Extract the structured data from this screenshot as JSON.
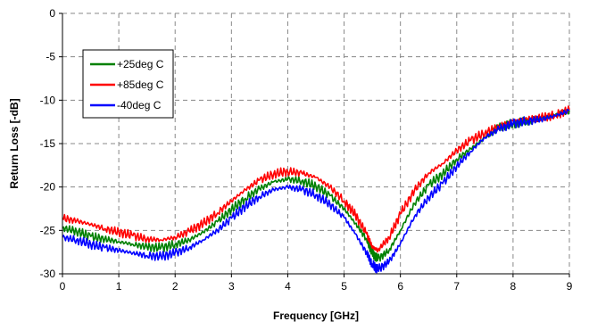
{
  "chart_data": {
    "type": "line",
    "title": "",
    "xlabel": "Frequency [GHz]",
    "ylabel": "Return Loss [-dB]",
    "xlim": [
      0,
      9
    ],
    "ylim": [
      -30,
      0
    ],
    "xticks": [
      0,
      1,
      2,
      3,
      4,
      5,
      6,
      7,
      8,
      9
    ],
    "yticks": [
      0,
      -5,
      -10,
      -15,
      -20,
      -25,
      -30
    ],
    "grid": true,
    "legend_position": "top-left",
    "series": [
      {
        "name": "+25deg C",
        "color": "#008000",
        "x": [
          0,
          0.25,
          0.5,
          0.75,
          1,
          1.25,
          1.5,
          1.75,
          2,
          2.25,
          2.5,
          2.75,
          3,
          3.25,
          3.5,
          3.75,
          4,
          4.25,
          4.5,
          4.75,
          5,
          5.2,
          5.4,
          5.5,
          5.6,
          5.8,
          6,
          6.25,
          6.5,
          6.75,
          7,
          7.25,
          7.5,
          7.75,
          8,
          8.25,
          8.5,
          8.75,
          9
        ],
        "y": [
          -24.7,
          -25.1,
          -25.7,
          -26.0,
          -26.3,
          -26.6,
          -26.9,
          -27.0,
          -26.6,
          -26.1,
          -25.2,
          -24.0,
          -22.6,
          -21.3,
          -20.2,
          -19.4,
          -19.1,
          -19.3,
          -19.9,
          -21.0,
          -22.5,
          -24.2,
          -26.0,
          -27.6,
          -28.3,
          -27.3,
          -25.0,
          -21.9,
          -19.8,
          -18.5,
          -16.8,
          -15.6,
          -14.3,
          -13.1,
          -12.7,
          -12.4,
          -12.1,
          -11.7,
          -11.2
        ]
      },
      {
        "name": "+85deg C",
        "color": "#ff0000",
        "x": [
          0,
          0.25,
          0.5,
          0.75,
          1,
          1.25,
          1.5,
          1.75,
          2,
          2.25,
          2.5,
          2.75,
          3,
          3.25,
          3.5,
          3.75,
          4,
          4.25,
          4.5,
          4.75,
          5,
          5.2,
          5.4,
          5.5,
          5.6,
          5.8,
          6,
          6.25,
          6.5,
          6.75,
          7,
          7.25,
          7.5,
          7.75,
          8,
          8.25,
          8.5,
          8.75,
          9
        ],
        "y": [
          -23.6,
          -23.9,
          -24.3,
          -24.8,
          -25.2,
          -25.6,
          -26.0,
          -26.1,
          -25.8,
          -25.1,
          -24.2,
          -23.0,
          -21.6,
          -20.3,
          -19.2,
          -18.5,
          -18.2,
          -18.4,
          -18.9,
          -20.0,
          -21.6,
          -23.2,
          -25.4,
          -26.9,
          -27.3,
          -25.8,
          -23.1,
          -20.4,
          -18.4,
          -17.3,
          -15.8,
          -14.6,
          -13.8,
          -13.0,
          -12.4,
          -12.2,
          -12.0,
          -11.7,
          -11.1
        ]
      },
      {
        "name": "-40deg C",
        "color": "#0000ff",
        "x": [
          0,
          0.25,
          0.5,
          0.75,
          1,
          1.25,
          1.5,
          1.75,
          2,
          2.25,
          2.5,
          2.75,
          3,
          3.25,
          3.5,
          3.75,
          4,
          4.25,
          4.5,
          4.75,
          5,
          5.2,
          5.4,
          5.5,
          5.6,
          5.8,
          6,
          6.25,
          6.5,
          6.75,
          7,
          7.25,
          7.5,
          7.75,
          8,
          8.25,
          8.5,
          8.75,
          9
        ],
        "y": [
          -25.8,
          -26.1,
          -26.6,
          -27.0,
          -27.3,
          -27.6,
          -27.9,
          -28.0,
          -27.6,
          -27.0,
          -26.1,
          -25.0,
          -23.6,
          -22.2,
          -21.1,
          -20.3,
          -20.0,
          -20.3,
          -20.9,
          -22.0,
          -23.5,
          -25.4,
          -27.6,
          -28.9,
          -29.5,
          -28.6,
          -26.5,
          -23.4,
          -21.2,
          -19.6,
          -17.6,
          -15.9,
          -14.3,
          -13.3,
          -12.7,
          -12.4,
          -12.2,
          -11.8,
          -11.2
        ]
      }
    ]
  }
}
